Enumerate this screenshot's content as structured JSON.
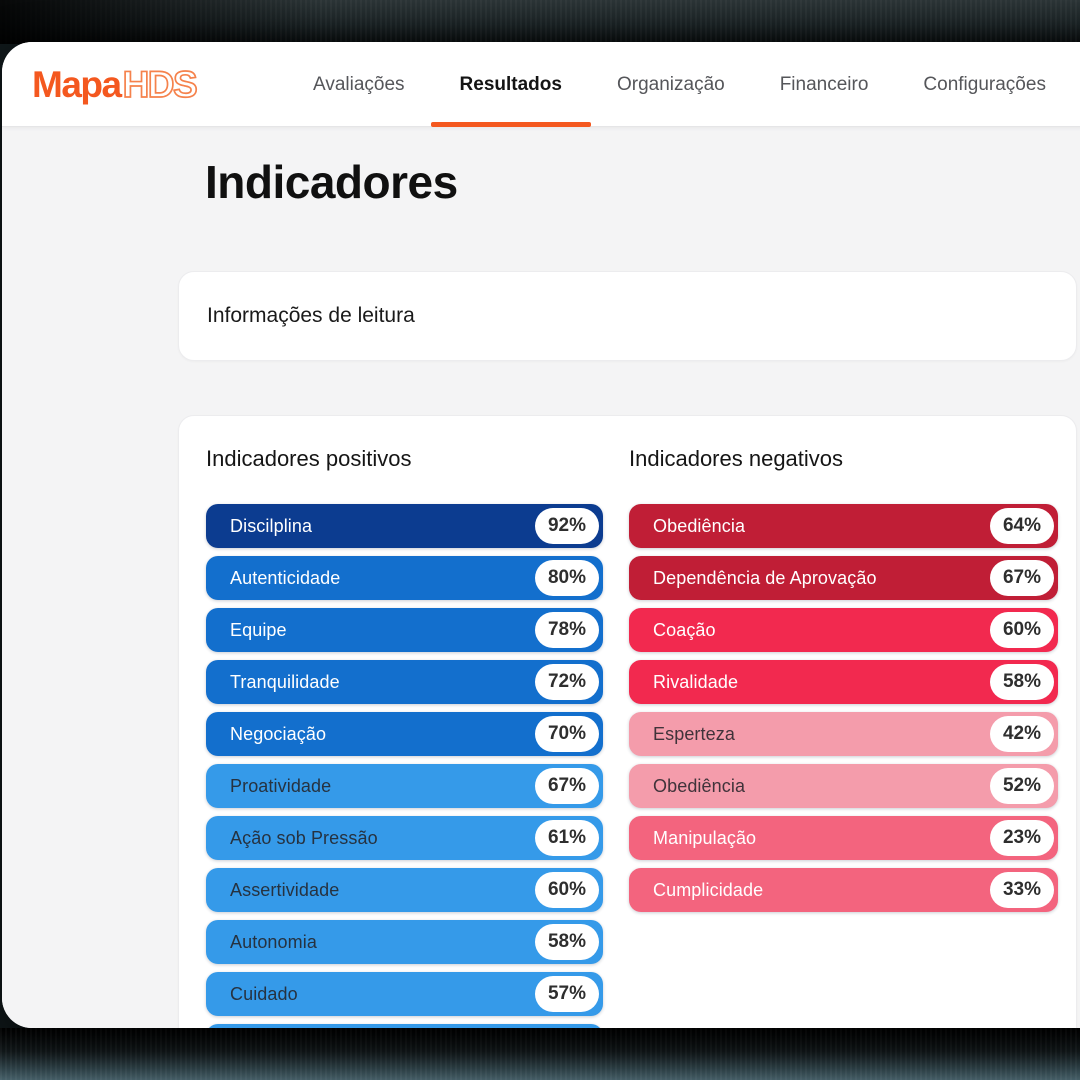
{
  "brand": {
    "name": "MapaHDS",
    "logo_solid": "Mapa",
    "logo_outline": "HDS",
    "accent_color": "#F4581F"
  },
  "nav": {
    "items": [
      {
        "label": "Avaliações",
        "active": false
      },
      {
        "label": "Resultados",
        "active": true
      },
      {
        "label": "Organização",
        "active": false
      },
      {
        "label": "Financeiro",
        "active": false
      },
      {
        "label": "Configurações",
        "active": false
      }
    ]
  },
  "page": {
    "title": "Indicadores"
  },
  "info_card": {
    "title": "Informações de leitura"
  },
  "indicators": {
    "positive": {
      "heading": "Indicadores positivos",
      "items": [
        {
          "label": "Discilplina",
          "value": "92%",
          "color": "#0C3C90",
          "text_color": "#FFFFFF"
        },
        {
          "label": "Autenticidade",
          "value": "80%",
          "color": "#136FCD",
          "text_color": "#FFFFFF"
        },
        {
          "label": "Equipe",
          "value": "78%",
          "color": "#136FCD",
          "text_color": "#FFFFFF"
        },
        {
          "label": "Tranquilidade",
          "value": "72%",
          "color": "#136FCD",
          "text_color": "#FFFFFF"
        },
        {
          "label": "Negociação",
          "value": "70%",
          "color": "#136FCD",
          "text_color": "#FFFFFF"
        },
        {
          "label": "Proatividade",
          "value": "67%",
          "color": "#359AE9",
          "text_color": "#263240"
        },
        {
          "label": "Ação sob Pressão",
          "value": "61%",
          "color": "#359AE9",
          "text_color": "#263240"
        },
        {
          "label": "Assertividade",
          "value": "60%",
          "color": "#359AE9",
          "text_color": "#263240"
        },
        {
          "label": "Autonomia",
          "value": "58%",
          "color": "#359AE9",
          "text_color": "#263240"
        },
        {
          "label": "Cuidado",
          "value": "57%",
          "color": "#359AE9",
          "text_color": "#263240"
        },
        {
          "label": "",
          "value": "",
          "color": "#359AE9",
          "text_color": "#263240"
        }
      ]
    },
    "negative": {
      "heading": "Indicadores negativos",
      "items": [
        {
          "label": "Obediência",
          "value": "64%",
          "color": "#C01E36",
          "text_color": "#FFFFFF"
        },
        {
          "label": "Dependência de Aprovação",
          "value": "67%",
          "color": "#C01E36",
          "text_color": "#FFFFFF"
        },
        {
          "label": "Coação",
          "value": "60%",
          "color": "#F2294F",
          "text_color": "#FFFFFF"
        },
        {
          "label": "Rivalidade",
          "value": "58%",
          "color": "#F2294F",
          "text_color": "#FFFFFF"
        },
        {
          "label": "Esperteza",
          "value": "42%",
          "color": "#F49CAB",
          "text_color": "#40333A"
        },
        {
          "label": "Obediência",
          "value": "52%",
          "color": "#F49CAB",
          "text_color": "#40333A"
        },
        {
          "label": "Manipulação",
          "value": "23%",
          "color": "#F3647E",
          "text_color": "#FFFFFF"
        },
        {
          "label": "Cumplicidade",
          "value": "33%",
          "color": "#F3647E",
          "text_color": "#FFFFFF"
        }
      ]
    }
  }
}
